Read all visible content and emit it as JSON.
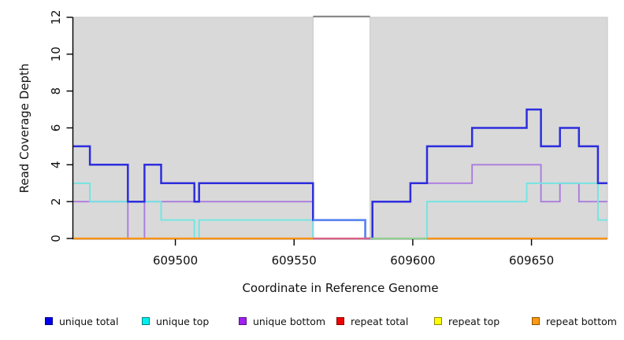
{
  "figure": {
    "background": "#ffffff",
    "shade_fill": "#d9d9d9",
    "shade_border": "#c6c6c6",
    "gap_cap_color": "#8a8a8a",
    "axis_color": "#000000",
    "text_color": "#111111"
  },
  "chart_data": {
    "type": "line",
    "subtype": "step-coverage",
    "title": "",
    "xlabel": "Coordinate in Reference Genome",
    "ylabel": "Read Coverage Depth",
    "xlim": [
      609457,
      609682
    ],
    "ylim": [
      0,
      12
    ],
    "xticks": [
      609500,
      609550,
      609600,
      609650
    ],
    "yticks": [
      0,
      2,
      4,
      6,
      8,
      10,
      12
    ],
    "grid": false,
    "legend_position": "bottom",
    "shaded_regions": [
      {
        "from": 609457,
        "to": 609558
      },
      {
        "from": 609582,
        "to": 609682
      }
    ],
    "unshaded_gap": {
      "from": 609558,
      "to": 609582
    },
    "series": [
      {
        "name": "repeat total",
        "line_color": "#e04848",
        "steps": [
          [
            609457,
            0
          ]
        ]
      },
      {
        "name": "repeat top",
        "line_color": "#f2e35f",
        "steps": [
          [
            609457,
            0
          ]
        ]
      },
      {
        "name": "repeat bottom",
        "line_color": "#ff9000",
        "steps": [
          [
            609457,
            0
          ]
        ]
      },
      {
        "name": "unique bottom",
        "line_color": "#ab7bdf",
        "steps": [
          [
            609457,
            2
          ],
          [
            609480,
            0
          ],
          [
            609487,
            2
          ],
          [
            609558,
            0
          ],
          [
            609583,
            2
          ],
          [
            609599,
            3
          ],
          [
            609625,
            4
          ],
          [
            609654,
            2
          ],
          [
            609662,
            3
          ],
          [
            609670,
            2
          ]
        ]
      },
      {
        "name": "unique top",
        "line_color": "#6fe6e3",
        "steps": [
          [
            609457,
            3
          ],
          [
            609464,
            2
          ],
          [
            609494,
            1
          ],
          [
            609508,
            0
          ],
          [
            609510,
            1
          ],
          [
            609558,
            0
          ],
          [
            609606,
            2
          ],
          [
            609648,
            3
          ],
          [
            609678,
            1
          ]
        ]
      },
      {
        "name": "unique total",
        "line_color": "#2d2dde",
        "steps": [
          [
            609457,
            5
          ],
          [
            609464,
            4
          ],
          [
            609480,
            2
          ],
          [
            609487,
            4
          ],
          [
            609494,
            3
          ],
          [
            609508,
            2
          ],
          [
            609510,
            3
          ],
          [
            609558,
            1
          ],
          [
            609580,
            0
          ],
          [
            609583,
            2
          ],
          [
            609599,
            3
          ],
          [
            609606,
            5
          ],
          [
            609625,
            6
          ],
          [
            609648,
            7
          ],
          [
            609654,
            5
          ],
          [
            609662,
            6
          ],
          [
            609670,
            5
          ],
          [
            609678,
            3
          ]
        ]
      }
    ],
    "zero_line_segments": [
      {
        "from": 609457,
        "to": 609558,
        "color": "#ff9000"
      },
      {
        "from": 609558,
        "to": 609582,
        "color": "#de6084"
      },
      {
        "from": 609582,
        "to": 609606,
        "color": "#8fcf8f"
      },
      {
        "from": 609606,
        "to": 609682,
        "color": "#ff9000"
      }
    ],
    "gap_overlay_segment": {
      "color": "#5b8cf0",
      "from": 609558,
      "to": 609580,
      "value": 1
    }
  },
  "legend": {
    "items": [
      {
        "label": "unique total",
        "color": "#0000ee"
      },
      {
        "label": "unique top",
        "color": "#00eeee"
      },
      {
        "label": "unique bottom",
        "color": "#a020f0"
      },
      {
        "label": "repeat total",
        "color": "#ee0000"
      },
      {
        "label": "repeat top",
        "color": "#ffff00"
      },
      {
        "label": "repeat bottom",
        "color": "#ff9912"
      }
    ]
  }
}
